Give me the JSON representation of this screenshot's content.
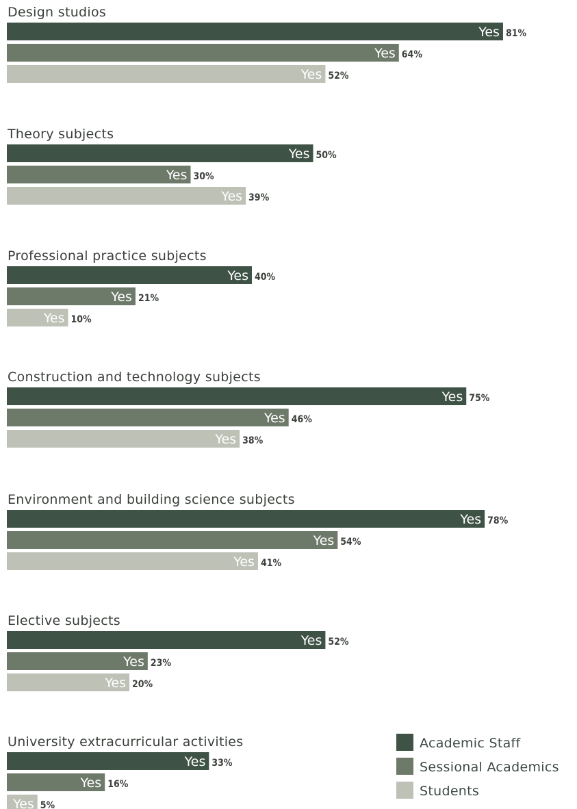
{
  "chart_data": {
    "type": "bar",
    "orientation": "horizontal",
    "value_unit": "%",
    "bar_text": "Yes",
    "legend_placement": "bottom-right",
    "colors": {
      "Academic Staff": "#3f5246",
      "Sessional Academics": "#6d7a6a",
      "Students": "#bdc1b6"
    },
    "series_names": [
      "Academic Staff",
      "Sessional Academics",
      "Students"
    ],
    "groups": [
      {
        "title": "Design studios",
        "values": [
          81,
          64,
          52
        ]
      },
      {
        "title": "Theory subjects",
        "values": [
          50,
          30,
          39
        ]
      },
      {
        "title": "Professional practice subjects",
        "values": [
          40,
          21,
          10
        ]
      },
      {
        "title": "Construction and technology subjects",
        "values": [
          75,
          46,
          38
        ]
      },
      {
        "title": "Environment and building science subjects",
        "values": [
          78,
          54,
          41
        ]
      },
      {
        "title": "Elective subjects",
        "values": [
          52,
          23,
          20
        ]
      },
      {
        "title": "University extracurricular activities",
        "values": [
          33,
          16,
          5
        ]
      }
    ]
  }
}
